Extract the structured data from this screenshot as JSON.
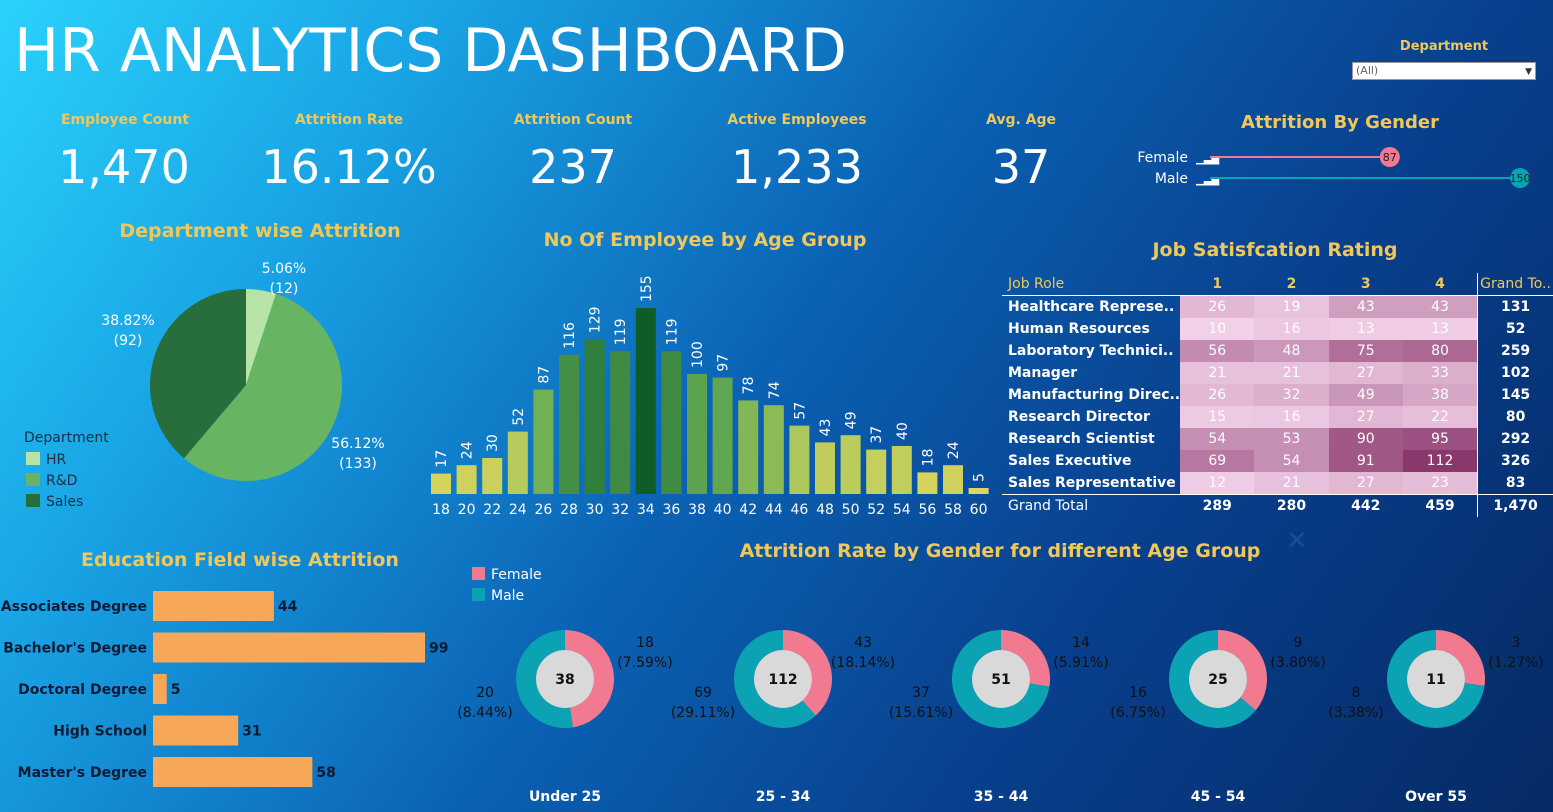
{
  "header": {
    "title": "HR ANALYTICS DASHBOARD"
  },
  "filter": {
    "label": "Department",
    "value": "(All)"
  },
  "kpis": [
    {
      "label": "Employee Count",
      "value": "1,470"
    },
    {
      "label": "Attrition Rate",
      "value": "16.12%"
    },
    {
      "label": "Attrition Count",
      "value": "237"
    },
    {
      "label": "Active Employees",
      "value": "1,233"
    },
    {
      "label": "Avg. Age",
      "value": "37"
    }
  ],
  "colors": {
    "hr": "#b7e3a6",
    "rnd": "#67b463",
    "sales": "#276e3c",
    "female": "#f17a90",
    "male": "#0ba3b4",
    "gold": "#f0c85a",
    "edu_bar": "#f7a758",
    "donut_center": "#d9d9d9"
  },
  "chart_data": [
    {
      "id": "gender",
      "type": "bar",
      "title": "Attrition By Gender",
      "categories": [
        "Female",
        "Male"
      ],
      "values": [
        87,
        150
      ],
      "xlim": [
        0,
        150
      ]
    },
    {
      "id": "dept",
      "type": "pie",
      "title": "Department wise Attrition",
      "legend_title": "Department",
      "legend_position": "bottom-left",
      "slices": [
        {
          "name": "HR",
          "value": 12,
          "pct": "5.06%",
          "count": "(12)",
          "color": "#b7e3a6"
        },
        {
          "name": "R&D",
          "value": 133,
          "pct": "56.12%",
          "count": "(133)",
          "color": "#67b463"
        },
        {
          "name": "Sales",
          "value": 92,
          "pct": "38.82%",
          "count": "(92)",
          "color": "#276e3c"
        }
      ]
    },
    {
      "id": "age",
      "type": "bar",
      "title": "No Of Employee by Age Group",
      "categories": [
        "18",
        "20",
        "22",
        "24",
        "26",
        "28",
        "30",
        "32",
        "34",
        "36",
        "38",
        "40",
        "42",
        "44",
        "46",
        "48",
        "50",
        "52",
        "54",
        "56",
        "58",
        "60"
      ],
      "values": [
        17,
        24,
        30,
        52,
        87,
        116,
        129,
        119,
        155,
        119,
        100,
        97,
        78,
        74,
        57,
        43,
        49,
        37,
        40,
        18,
        24,
        5
      ],
      "ylim": [
        0,
        155
      ]
    },
    {
      "id": "job",
      "type": "heatmap",
      "title": "Job Satisfcation Rating",
      "columns": [
        "Job Role",
        "1",
        "2",
        "3",
        "4",
        "Grand To.."
      ],
      "rows": [
        {
          "role": "Healthcare Represe..",
          "values": [
            26,
            19,
            43,
            43
          ],
          "total": "131"
        },
        {
          "role": "Human Resources",
          "values": [
            10,
            16,
            13,
            13
          ],
          "total": "52"
        },
        {
          "role": "Laboratory Technici..",
          "values": [
            56,
            48,
            75,
            80
          ],
          "total": "259"
        },
        {
          "role": "Manager",
          "values": [
            21,
            21,
            27,
            33
          ],
          "total": "102"
        },
        {
          "role": "Manufacturing Direc..",
          "values": [
            26,
            32,
            49,
            38
          ],
          "total": "145"
        },
        {
          "role": "Research Director",
          "values": [
            15,
            16,
            27,
            22
          ],
          "total": "80"
        },
        {
          "role": "Research Scientist",
          "values": [
            54,
            53,
            90,
            95
          ],
          "total": "292"
        },
        {
          "role": "Sales Executive",
          "values": [
            69,
            54,
            91,
            112
          ],
          "total": "326"
        },
        {
          "role": "Sales Representative",
          "values": [
            12,
            21,
            27,
            23
          ],
          "total": "83"
        }
      ],
      "grand_total": {
        "label": "Grand Total",
        "values": [
          "289",
          "280",
          "442",
          "459"
        ],
        "total": "1,470"
      }
    },
    {
      "id": "edu",
      "type": "bar",
      "title": "Education Field wise Attrition",
      "categories": [
        "Associates Degree",
        "Bachelor's Degree",
        "Doctoral Degree",
        "High School",
        "Master's Degree"
      ],
      "values": [
        44,
        99,
        5,
        31,
        58
      ],
      "xlim": [
        0,
        99
      ]
    },
    {
      "id": "donuts",
      "type": "pie",
      "title": "Attrition Rate by Gender for different Age Group",
      "legend": [
        "Female",
        "Male"
      ],
      "groups": [
        {
          "name": "Under 25",
          "total": "38",
          "female": 18,
          "male": 20,
          "female_pct": "(7.59%)",
          "male_pct": "(8.44%)"
        },
        {
          "name": "25 - 34",
          "total": "112",
          "female": 43,
          "male": 69,
          "female_pct": "(18.14%)",
          "male_pct": "(29.11%)"
        },
        {
          "name": "35 - 44",
          "total": "51",
          "female": 14,
          "male": 37,
          "female_pct": "(5.91%)",
          "male_pct": "(15.61%)"
        },
        {
          "name": "45 - 54",
          "total": "25",
          "female": 9,
          "male": 16,
          "female_pct": "(3.80%)",
          "male_pct": "(6.75%)"
        },
        {
          "name": "Over 55",
          "total": "11",
          "female": 3,
          "male": 8,
          "female_pct": "(1.27%)",
          "male_pct": "(3.38%)"
        }
      ]
    }
  ]
}
